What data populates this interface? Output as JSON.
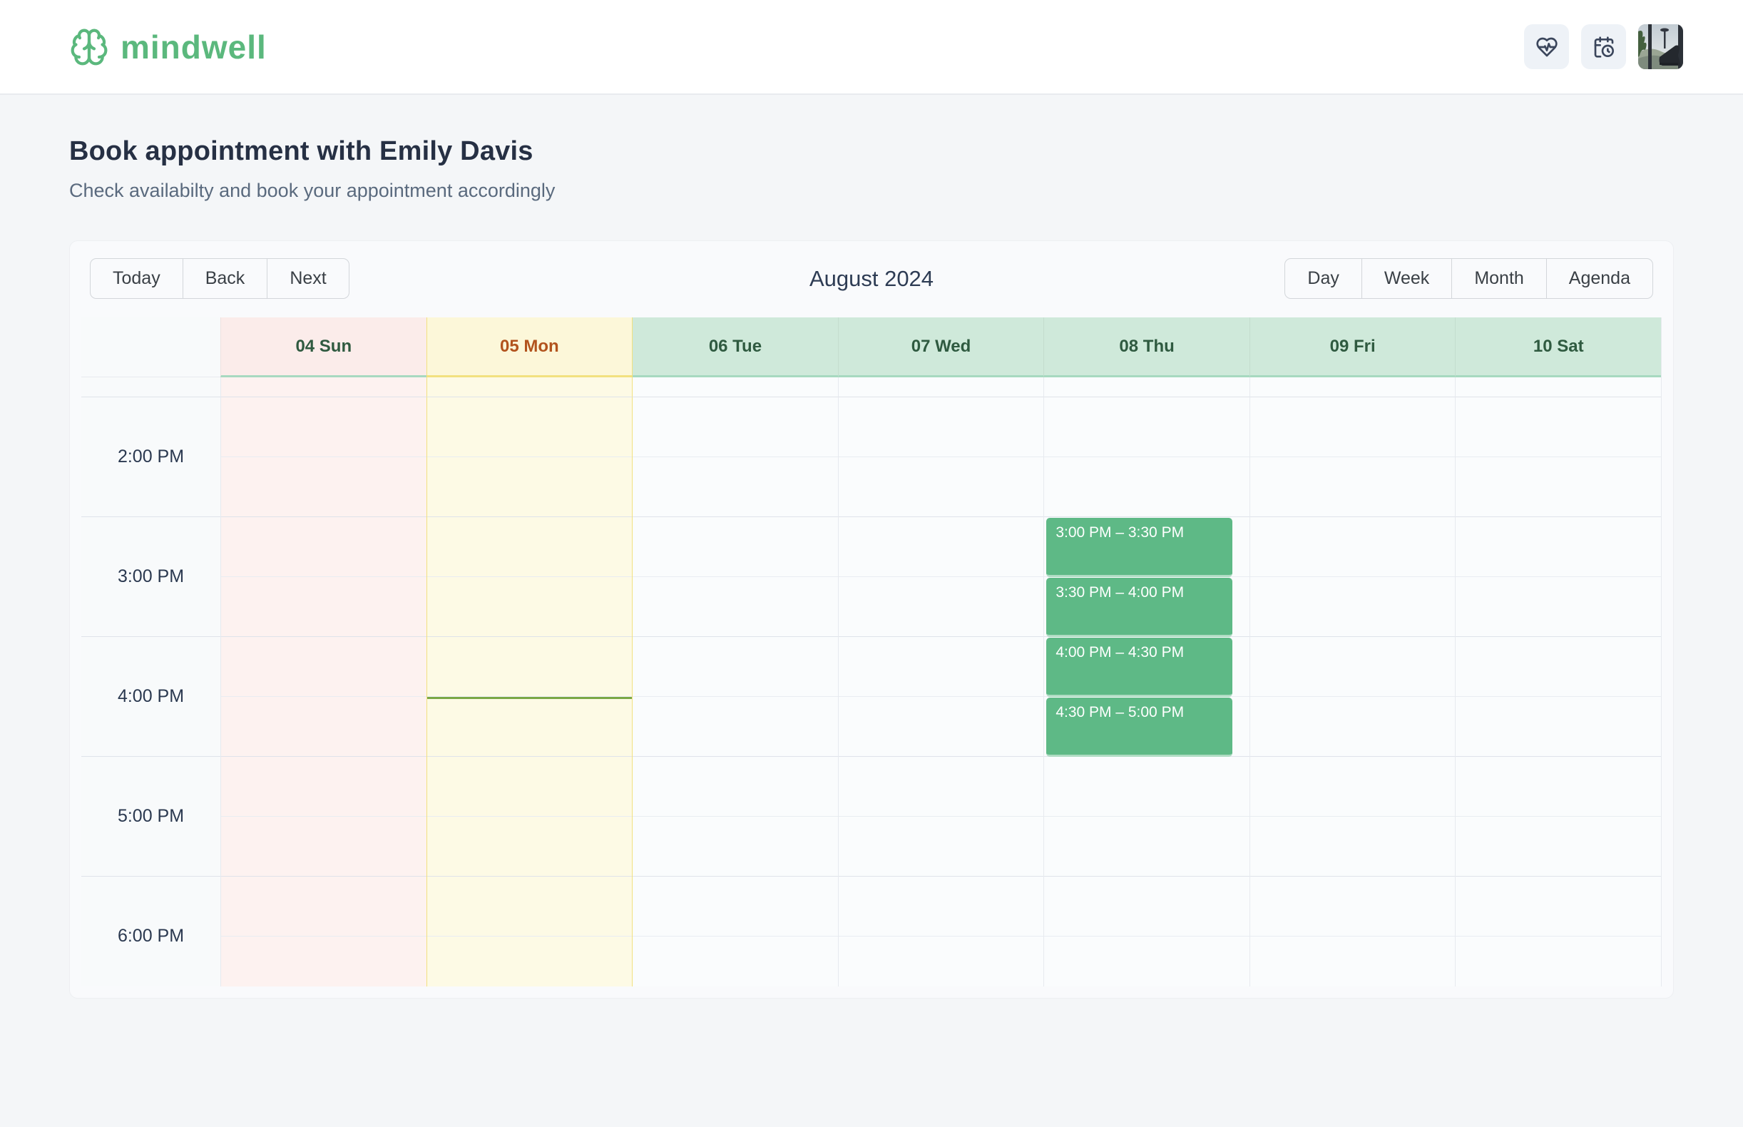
{
  "brand": {
    "name": "mindwell",
    "color": "#5bb87d"
  },
  "topbar": {
    "icons": [
      {
        "name": "heart-pulse"
      },
      {
        "name": "calendar-clock"
      },
      {
        "name": "user-avatar"
      }
    ]
  },
  "page": {
    "title": "Book appointment with Emily Davis",
    "subtitle": "Check availabilty and book your appointment accordingly"
  },
  "toolbar": {
    "nav": [
      "Today",
      "Back",
      "Next"
    ],
    "label": "August 2024",
    "views": [
      "Day",
      "Week",
      "Month",
      "Agenda"
    ]
  },
  "calendar": {
    "times": [
      "2:00 PM",
      "3:00 PM",
      "4:00 PM",
      "5:00 PM",
      "6:00 PM"
    ],
    "days": [
      {
        "label": "04 Sun",
        "theme": "sunday"
      },
      {
        "label": "05 Mon",
        "theme": "today"
      },
      {
        "label": "06 Tue",
        "theme": "default"
      },
      {
        "label": "07 Wed",
        "theme": "default"
      },
      {
        "label": "08 Thu",
        "theme": "default"
      },
      {
        "label": "09 Fri",
        "theme": "default"
      },
      {
        "label": "10 Sat",
        "theme": "default"
      }
    ],
    "events": [
      {
        "day": "08 Thu",
        "start": "3:00 PM",
        "end": "3:30 PM",
        "title": "3:00 PM – 3:30 PM"
      },
      {
        "day": "08 Thu",
        "start": "3:30 PM",
        "end": "4:00 PM",
        "title": "3:30 PM – 4:00 PM"
      },
      {
        "day": "08 Thu",
        "start": "4:00 PM",
        "end": "4:30 PM",
        "title": "4:00 PM – 4:30 PM"
      },
      {
        "day": "08 Thu",
        "start": "4:30 PM",
        "end": "5:00 PM",
        "title": "4:30 PM – 5:00 PM"
      }
    ],
    "now_indicator": {
      "day": "05 Mon",
      "time": "4:30 PM"
    },
    "colors": {
      "event": "#5eb986",
      "now_line": "#7aa845",
      "sunday_header": "#fbecea",
      "sunday_column": "#fdf2f0",
      "today_header": "#fcf7d9",
      "today_column": "#fdfae5",
      "today_border": "#f2e17f",
      "weekday_header": "#cfe9da",
      "header_underline": "#a7d9c0",
      "header_text_green": "#2f5a40",
      "header_text_today": "#b2531d"
    }
  }
}
